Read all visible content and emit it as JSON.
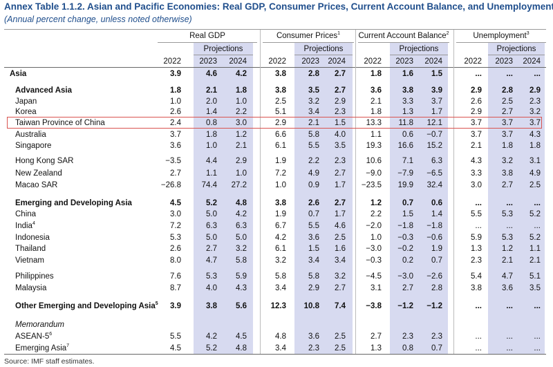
{
  "header": {
    "title": "Annex Table 1.1.2. Asian and Pacific Economies: Real GDP, Consumer Prices, Current Account Balance, and Unemployment",
    "subtitle": "(Annual percent change, unless noted otherwise)"
  },
  "table": {
    "groups": [
      {
        "label": "Real GDP"
      },
      {
        "label": "Consumer Prices",
        "note": "1"
      },
      {
        "label": "Current Account Balance",
        "note": "2"
      },
      {
        "label": "Unemployment",
        "note": "3"
      }
    ],
    "projections": "Projections",
    "years": [
      "2022",
      "2023",
      "2024"
    ],
    "rows": [
      {
        "label": "Asia",
        "bold": true,
        "values": [
          "3.9",
          "4.6",
          "4.2",
          "3.8",
          "2.8",
          "2.7",
          "1.8",
          "1.6",
          "1.5",
          "...",
          "...",
          "..."
        ]
      },
      {
        "label": "Advanced Asia",
        "bold": true,
        "values": [
          "1.8",
          "2.1",
          "1.8",
          "3.8",
          "3.5",
          "2.7",
          "3.6",
          "3.8",
          "3.9",
          "2.9",
          "2.8",
          "2.9"
        ]
      },
      {
        "label": "Japan",
        "values": [
          "1.0",
          "2.0",
          "1.0",
          "2.5",
          "3.2",
          "2.9",
          "2.1",
          "3.3",
          "3.7",
          "2.6",
          "2.5",
          "2.3"
        ]
      },
      {
        "label": "Korea",
        "values": [
          "2.6",
          "1.4",
          "2.2",
          "5.1",
          "3.4",
          "2.3",
          "1.8",
          "1.3",
          "1.7",
          "2.9",
          "2.7",
          "3.2"
        ]
      },
      {
        "label": "Taiwan Province of China",
        "highlight": true,
        "values": [
          "2.4",
          "0.8",
          "3.0",
          "2.9",
          "2.1",
          "1.5",
          "13.3",
          "11.8",
          "12.1",
          "3.7",
          "3.7",
          "3.7"
        ]
      },
      {
        "label": "Australia",
        "values": [
          "3.7",
          "1.8",
          "1.2",
          "6.6",
          "5.8",
          "4.0",
          "1.1",
          "0.6",
          "−0.7",
          "3.7",
          "3.7",
          "4.3"
        ]
      },
      {
        "label": "Singapore",
        "values": [
          "3.6",
          "1.0",
          "2.1",
          "6.1",
          "5.5",
          "3.5",
          "19.3",
          "16.6",
          "15.2",
          "2.1",
          "1.8",
          "1.8"
        ]
      },
      {
        "label": "Hong Kong SAR",
        "values": [
          "−3.5",
          "4.4",
          "2.9",
          "1.9",
          "2.2",
          "2.3",
          "10.6",
          "7.1",
          "6.3",
          "4.3",
          "3.2",
          "3.1"
        ]
      },
      {
        "label": "New Zealand",
        "values": [
          "2.7",
          "1.1",
          "1.0",
          "7.2",
          "4.9",
          "2.7",
          "−9.0",
          "−7.9",
          "−6.5",
          "3.3",
          "3.8",
          "4.9"
        ]
      },
      {
        "label": "Macao SAR",
        "values": [
          "−26.8",
          "74.4",
          "27.2",
          "1.0",
          "0.9",
          "1.7",
          "−23.5",
          "19.9",
          "32.4",
          "3.0",
          "2.7",
          "2.5"
        ]
      },
      {
        "label": "Emerging and Developing Asia",
        "bold": true,
        "values": [
          "4.5",
          "5.2",
          "4.8",
          "3.8",
          "2.6",
          "2.7",
          "1.2",
          "0.7",
          "0.6",
          "...",
          "...",
          "..."
        ]
      },
      {
        "label": "China",
        "values": [
          "3.0",
          "5.0",
          "4.2",
          "1.9",
          "0.7",
          "1.7",
          "2.2",
          "1.5",
          "1.4",
          "5.5",
          "5.3",
          "5.2"
        ]
      },
      {
        "label": "India",
        "note": "4",
        "values": [
          "7.2",
          "6.3",
          "6.3",
          "6.7",
          "5.5",
          "4.6",
          "−2.0",
          "−1.8",
          "−1.8",
          "...",
          "...",
          "..."
        ]
      },
      {
        "label": "Indonesia",
        "values": [
          "5.3",
          "5.0",
          "5.0",
          "4.2",
          "3.6",
          "2.5",
          "1.0",
          "−0.3",
          "−0.6",
          "5.9",
          "5.3",
          "5.2"
        ]
      },
      {
        "label": "Thailand",
        "values": [
          "2.6",
          "2.7",
          "3.2",
          "6.1",
          "1.5",
          "1.6",
          "−3.0",
          "−0.2",
          "1.9",
          "1.3",
          "1.2",
          "1.1"
        ]
      },
      {
        "label": "Vietnam",
        "values": [
          "8.0",
          "4.7",
          "5.8",
          "3.2",
          "3.4",
          "3.4",
          "−0.3",
          "0.2",
          "0.7",
          "2.3",
          "2.1",
          "2.1"
        ]
      },
      {
        "label": "Philippines",
        "values": [
          "7.6",
          "5.3",
          "5.9",
          "5.8",
          "5.8",
          "3.2",
          "−4.5",
          "−3.0",
          "−2.6",
          "5.4",
          "4.7",
          "5.1"
        ]
      },
      {
        "label": "Malaysia",
        "values": [
          "8.7",
          "4.0",
          "4.3",
          "3.4",
          "2.9",
          "2.7",
          "3.1",
          "2.7",
          "2.8",
          "3.8",
          "3.6",
          "3.5"
        ]
      },
      {
        "label": "Other Emerging and Developing Asia",
        "note": "5",
        "bold": true,
        "values": [
          "3.9",
          "3.8",
          "5.6",
          "12.3",
          "10.8",
          "7.4",
          "−3.8",
          "−1.2",
          "−1.2",
          "...",
          "...",
          "..."
        ]
      },
      {
        "label": "Memorandum",
        "italic": true
      },
      {
        "label": "ASEAN-5",
        "note": "6",
        "values": [
          "5.5",
          "4.2",
          "4.5",
          "4.8",
          "3.6",
          "2.5",
          "2.7",
          "2.3",
          "2.3",
          "...",
          "...",
          "..."
        ]
      },
      {
        "label": "Emerging Asia",
        "note": "7",
        "values": [
          "4.5",
          "5.2",
          "4.8",
          "3.4",
          "2.3",
          "2.5",
          "1.3",
          "0.8",
          "0.7",
          "...",
          "...",
          "..."
        ]
      }
    ]
  },
  "footer": {
    "source": "Source: IMF staff estimates."
  }
}
